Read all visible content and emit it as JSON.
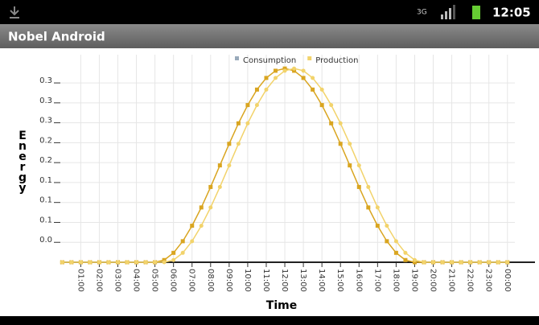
{
  "status_bar": {
    "time": "12:05"
  },
  "app_bar": {
    "title": "Nobel Android"
  },
  "chart_data": {
    "type": "line",
    "x_label": "Time",
    "y_label": "Energy",
    "x": [
      0,
      0.5,
      1,
      1.5,
      2,
      2.5,
      3,
      3.5,
      4,
      4.5,
      5,
      5.5,
      6,
      6.5,
      7,
      7.5,
      8,
      8.5,
      9,
      9.5,
      10,
      10.5,
      11,
      11.5,
      12,
      12.5,
      13,
      13.5,
      14,
      14.5,
      15,
      15.5,
      16,
      16.5,
      17,
      17.5,
      18,
      18.5,
      19,
      19.5,
      20,
      20.5,
      21,
      21.5,
      22,
      22.5,
      23,
      23.5,
      24
    ],
    "series": [
      {
        "name": "Consumption",
        "color": "#d9a520",
        "values": [
          0,
          0,
          0,
          0,
          0,
          0,
          0,
          0,
          0,
          0,
          0,
          0.004,
          0.017,
          0.038,
          0.066,
          0.099,
          0.136,
          0.175,
          0.214,
          0.251,
          0.284,
          0.312,
          0.333,
          0.346,
          0.35,
          0.346,
          0.333,
          0.312,
          0.284,
          0.251,
          0.214,
          0.175,
          0.136,
          0.099,
          0.066,
          0.038,
          0.017,
          0.004,
          0,
          0,
          0,
          0,
          0,
          0,
          0,
          0,
          0,
          0,
          0
        ]
      },
      {
        "name": "Production",
        "color": "#f2d36b",
        "values": [
          0,
          0,
          0,
          0,
          0,
          0,
          0,
          0,
          0,
          0,
          0,
          0,
          0.004,
          0.017,
          0.038,
          0.066,
          0.099,
          0.136,
          0.175,
          0.214,
          0.251,
          0.284,
          0.312,
          0.333,
          0.346,
          0.35,
          0.346,
          0.333,
          0.312,
          0.284,
          0.251,
          0.214,
          0.175,
          0.136,
          0.099,
          0.066,
          0.038,
          0.017,
          0.004,
          0,
          0,
          0,
          0,
          0,
          0,
          0,
          0,
          0,
          0
        ]
      }
    ],
    "xlim": [
      -0.1,
      24.4
    ],
    "ylim": [
      0,
      0.375
    ],
    "xticks": [
      {
        "value": 1,
        "label": "01:00"
      },
      {
        "value": 2,
        "label": "02:00"
      },
      {
        "value": 3,
        "label": "03:00"
      },
      {
        "value": 4,
        "label": "04:00"
      },
      {
        "value": 5,
        "label": "05:00"
      },
      {
        "value": 6,
        "label": "06:00"
      },
      {
        "value": 7,
        "label": "07:00"
      },
      {
        "value": 8,
        "label": "08:00"
      },
      {
        "value": 9,
        "label": "09:00"
      },
      {
        "value": 10,
        "label": "10:00"
      },
      {
        "value": 11,
        "label": "11:00"
      },
      {
        "value": 12,
        "label": "12:00"
      },
      {
        "value": 13,
        "label": "13:00"
      },
      {
        "value": 14,
        "label": "14:00"
      },
      {
        "value": 15,
        "label": "15:00"
      },
      {
        "value": 16,
        "label": "16:00"
      },
      {
        "value": 17,
        "label": "17:00"
      },
      {
        "value": 18,
        "label": "18:00"
      },
      {
        "value": 19,
        "label": "19:00"
      },
      {
        "value": 20,
        "label": "20:00"
      },
      {
        "value": 21,
        "label": "21:00"
      },
      {
        "value": 22,
        "label": "22:00"
      },
      {
        "value": 23,
        "label": "23:00"
      },
      {
        "value": 24,
        "label": "00:00"
      }
    ],
    "yticks": [
      {
        "value": 0.036,
        "label": "0.0"
      },
      {
        "value": 0.072,
        "label": "0.1"
      },
      {
        "value": 0.108,
        "label": "0.1"
      },
      {
        "value": 0.144,
        "label": "0.1"
      },
      {
        "value": 0.18,
        "label": "0.2"
      },
      {
        "value": 0.216,
        "label": "0.2"
      },
      {
        "value": 0.252,
        "label": "0.3"
      },
      {
        "value": 0.288,
        "label": "0.3"
      },
      {
        "value": 0.324,
        "label": "0.3"
      }
    ],
    "grid": true
  }
}
